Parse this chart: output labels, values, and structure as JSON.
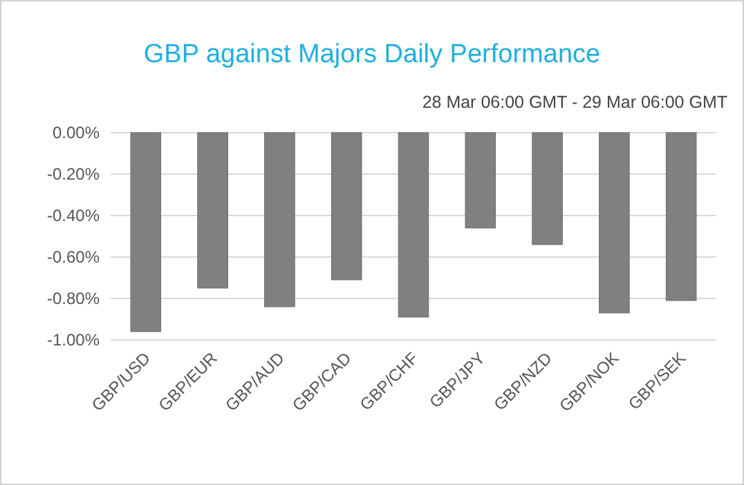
{
  "chart_data": {
    "type": "bar",
    "title": "GBP against Majors Daily Performance",
    "subtitle": "28 Mar 06:00 GMT - 29 Mar 06:00 GMT",
    "categories": [
      "GBP/USD",
      "GBP/EUR",
      "GBP/AUD",
      "GBP/CAD",
      "GBP/CHF",
      "GBP/JPY",
      "GBP/NZD",
      "GBP/NOK",
      "GBP/SEK"
    ],
    "values": [
      -0.96,
      -0.75,
      -0.84,
      -0.71,
      -0.89,
      -0.46,
      -0.54,
      -0.87,
      -0.81
    ],
    "color": "#808080",
    "ylim": [
      -1.0,
      0.0
    ],
    "yticks": [
      {
        "value": -1.0,
        "label": "-1.00%"
      },
      {
        "value": -0.8,
        "label": "-0.80%"
      },
      {
        "value": -0.6,
        "label": "-0.60%"
      },
      {
        "value": -0.4,
        "label": "-0.40%"
      },
      {
        "value": -0.2,
        "label": "-0.20%"
      },
      {
        "value": 0,
        "label": "0.00%"
      }
    ],
    "grid": "y"
  }
}
